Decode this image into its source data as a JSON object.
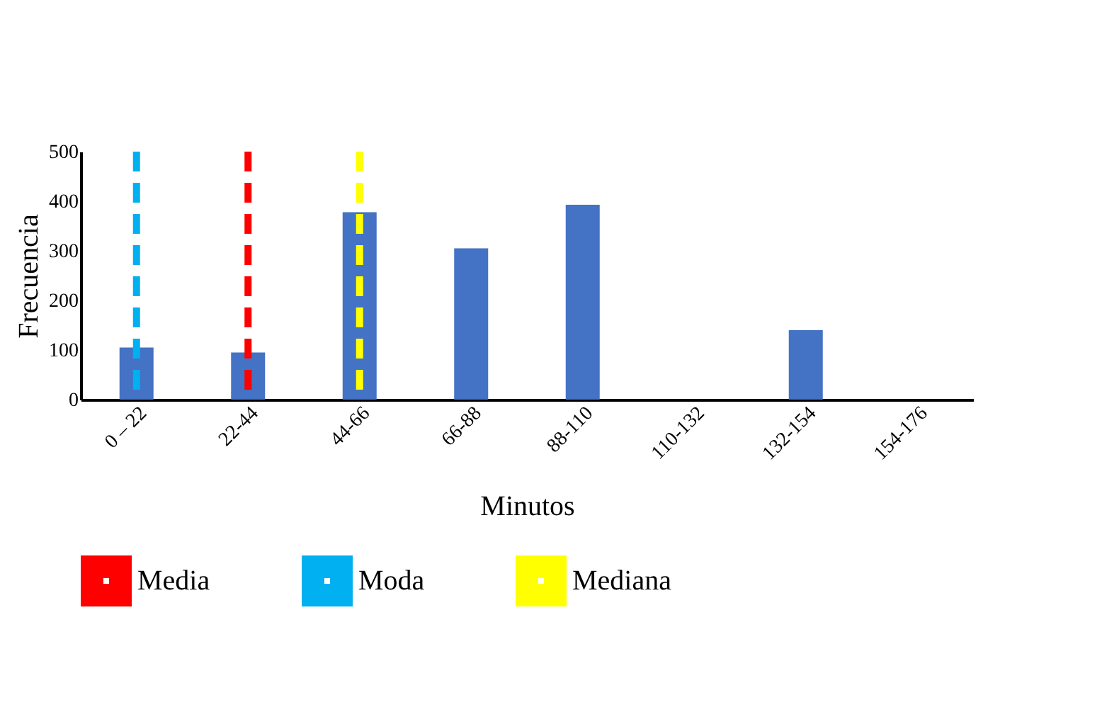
{
  "chart_data": {
    "type": "bar",
    "xlabel": "Minutos",
    "ylabel": "Frecuencia",
    "categories": [
      "0 – 22",
      "22-44",
      "44-66",
      "66-88",
      "88-110",
      "110-132",
      "132-154",
      "154-176"
    ],
    "values": [
      105,
      95,
      378,
      305,
      393,
      0,
      140,
      0
    ],
    "color": "#4472c4",
    "ylim": [
      0,
      500
    ],
    "yticks": [
      0,
      100,
      200,
      300,
      400,
      500
    ],
    "grid": false,
    "legend": "bottom",
    "ref_lines": [
      {
        "axis": "x",
        "value": "22-44",
        "label": "Media",
        "color": "#ff0000",
        "line_style": "dashed"
      },
      {
        "axis": "x",
        "value": "0 – 22",
        "label": "Moda",
        "color": "#00b0f0",
        "line_style": "dashed"
      },
      {
        "axis": "x",
        "value": "44-66",
        "label": "Mediana",
        "color": "#ffff00",
        "line_style": "dashed"
      }
    ]
  }
}
